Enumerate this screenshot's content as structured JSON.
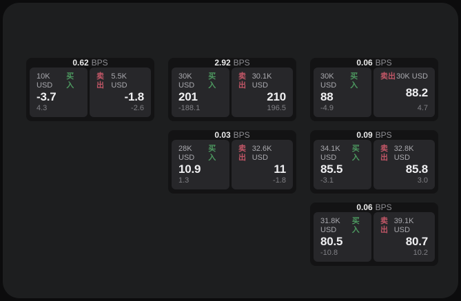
{
  "labels": {
    "bps": "BPS",
    "buy": "买入",
    "sell": "卖出"
  },
  "colors": {
    "buy": "#4d9960",
    "sell": "#c05666",
    "card_bg": "#131314",
    "panel_bg": "#27272a",
    "frame_bg": "#1d1e1f"
  },
  "cards": [
    {
      "bps": "0.62",
      "grid": {
        "row": 1,
        "col": 1
      },
      "buy": {
        "amount": "10K USD",
        "value": "-3.7",
        "sub": "4.3"
      },
      "sell": {
        "amount": "5.5K USD",
        "value": "-1.8",
        "sub": "-2.6"
      }
    },
    {
      "bps": "2.92",
      "grid": {
        "row": 1,
        "col": 2
      },
      "buy": {
        "amount": "30K USD",
        "value": "201",
        "sub": "-188.1"
      },
      "sell": {
        "amount": "30.1K USD",
        "value": "210",
        "sub": "196.5"
      }
    },
    {
      "bps": "0.06",
      "grid": {
        "row": 1,
        "col": 3
      },
      "buy": {
        "amount": "30K USD",
        "value": "88",
        "sub": "-4.9"
      },
      "sell": {
        "amount": "30K USD",
        "value": "88.2",
        "sub": "4.7"
      }
    },
    {
      "bps": "0.03",
      "grid": {
        "row": 2,
        "col": 2
      },
      "buy": {
        "amount": "28K USD",
        "value": "10.9",
        "sub": "1.3"
      },
      "sell": {
        "amount": "32.6K USD",
        "value": "11",
        "sub": "-1.8"
      }
    },
    {
      "bps": "0.09",
      "grid": {
        "row": 2,
        "col": 3
      },
      "buy": {
        "amount": "34.1K USD",
        "value": "85.5",
        "sub": "-3.1"
      },
      "sell": {
        "amount": "32.8K USD",
        "value": "85.8",
        "sub": "3.0"
      }
    },
    {
      "bps": "0.06",
      "grid": {
        "row": 3,
        "col": 3
      },
      "buy": {
        "amount": "31.8K USD",
        "value": "80.5",
        "sub": "-10.8"
      },
      "sell": {
        "amount": "39.1K USD",
        "value": "80.7",
        "sub": "10.2"
      }
    }
  ]
}
